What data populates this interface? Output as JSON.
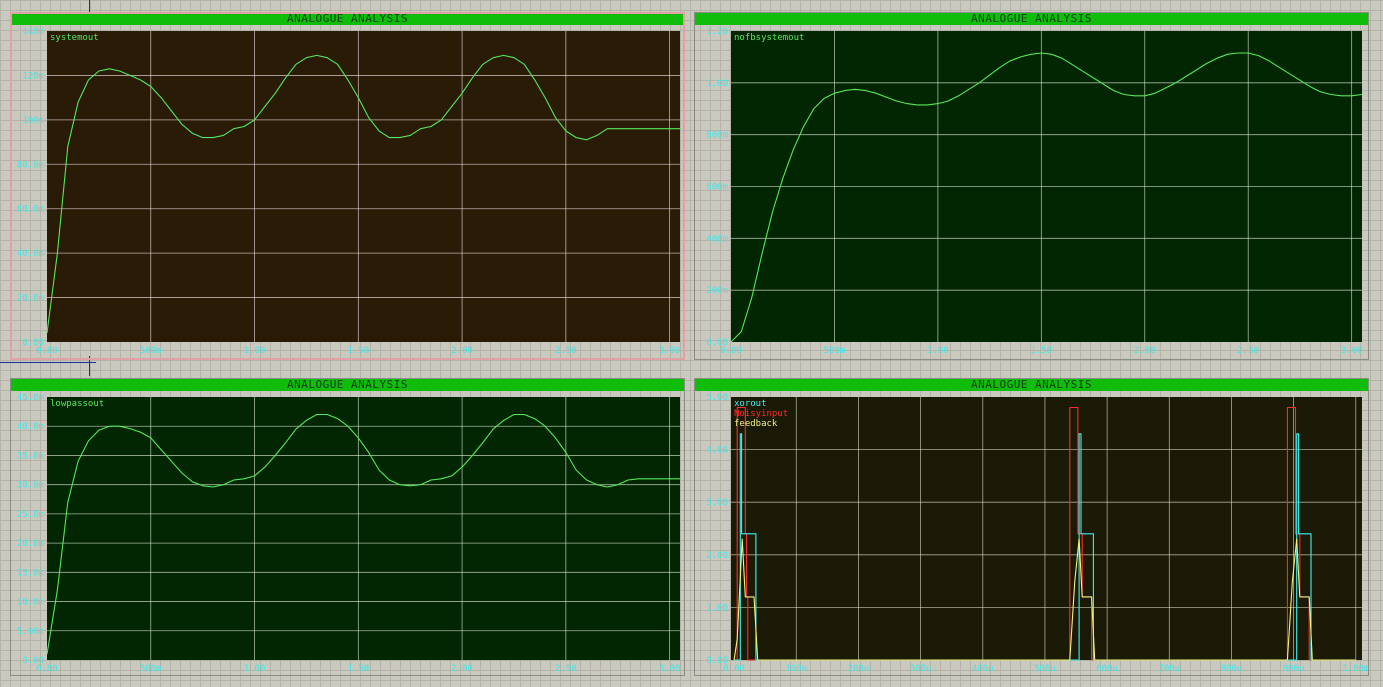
{
  "panels": [
    {
      "id": "p1",
      "title": "ANALOGUE ANALYSIS",
      "bg": "#2a1b07",
      "grid_color": "#f0dede",
      "selected": true,
      "traces": [
        {
          "name": "systemout",
          "color": "#56e856"
        }
      ],
      "x_ticks": [
        "0.00",
        "500m",
        "1.00",
        "1.50",
        "2.00",
        "2.50",
        "3.00"
      ],
      "y_ticks": [
        "0.00",
        "20.0m",
        "40.0m",
        "60.0m",
        "80.0m",
        "100m",
        "120m",
        "140m"
      ]
    },
    {
      "id": "p2",
      "title": "ANALOGUE ANALYSIS",
      "bg": "#022502",
      "grid_color": "#d8e8d0",
      "selected": false,
      "traces": [
        {
          "name": "nofbsystemout",
          "color": "#56e856"
        }
      ],
      "x_ticks": [
        "0.00",
        "500m",
        "1.00",
        "1.50",
        "2.00",
        "2.50",
        "3.00"
      ],
      "y_ticks": [
        "0.00",
        "200m",
        "400m",
        "600m",
        "800m",
        "1.00",
        "1.20"
      ]
    },
    {
      "id": "p3",
      "title": "ANALOGUE ANALYSIS",
      "bg": "#022502",
      "grid_color": "#d8e8d0",
      "selected": false,
      "traces": [
        {
          "name": "lowpassout",
          "color": "#56e856"
        }
      ],
      "x_ticks": [
        "0.00",
        "500m",
        "1.00",
        "1.50",
        "2.00",
        "2.50",
        "3.00"
      ],
      "y_ticks": [
        "0.00",
        "5.00m",
        "10.0m",
        "15.0m",
        "20.0m",
        "25.0m",
        "30.0m",
        "35.0m",
        "40.0m",
        "45.0m"
      ]
    },
    {
      "id": "p4",
      "title": "ANALOGUE ANALYSIS",
      "bg": "#1a1a06",
      "grid_color": "#dadcc0",
      "selected": false,
      "traces": [
        {
          "name": "xorout",
          "color": "#3ff0f0"
        },
        {
          "name": "Noisyinput",
          "color": "#ff2a2a"
        },
        {
          "name": "feedback",
          "color": "#f2f27c"
        }
      ],
      "x_ticks": [
        "0.00",
        "100u",
        "200u",
        "300u",
        "400u",
        "500u",
        "600u",
        "700u",
        "800u",
        "900u",
        "1.00m"
      ],
      "y_ticks": [
        "0.00",
        "1.00",
        "2.00",
        "3.00",
        "4.00",
        "5.00"
      ]
    }
  ],
  "chart_data": [
    {
      "type": "line",
      "title": "ANALOGUE ANALYSIS",
      "xlim": [
        0,
        3.05
      ],
      "ylim": [
        0,
        140
      ],
      "y_unit": "m",
      "series": [
        {
          "name": "systemout",
          "color": "#56e856",
          "x": [
            0,
            0.05,
            0.1,
            0.15,
            0.2,
            0.25,
            0.3,
            0.35,
            0.4,
            0.45,
            0.5,
            0.55,
            0.6,
            0.65,
            0.7,
            0.75,
            0.8,
            0.85,
            0.9,
            0.95,
            1.0,
            1.05,
            1.1,
            1.15,
            1.2,
            1.25,
            1.3,
            1.35,
            1.4,
            1.45,
            1.5,
            1.55,
            1.6,
            1.65,
            1.7,
            1.75,
            1.8,
            1.85,
            1.9,
            1.95,
            2.0,
            2.05,
            2.1,
            2.15,
            2.2,
            2.25,
            2.3,
            2.35,
            2.4,
            2.45,
            2.5,
            2.55,
            2.6,
            2.65,
            2.7,
            2.75,
            2.8,
            2.85,
            2.9,
            2.95,
            3.0,
            3.05
          ],
          "y": [
            4,
            40,
            88,
            108,
            118,
            122,
            123,
            122,
            120,
            118,
            115,
            110,
            104,
            98,
            94,
            92,
            92,
            93,
            96,
            97,
            100,
            106,
            112,
            119,
            125,
            128,
            129,
            128,
            125,
            118,
            110,
            101,
            95,
            92,
            92,
            93,
            96,
            97,
            100,
            106,
            112,
            119,
            125,
            128,
            129,
            128,
            125,
            118,
            110,
            101,
            95,
            92,
            91,
            93,
            96,
            96,
            96,
            96,
            96,
            96,
            96,
            96
          ]
        }
      ]
    },
    {
      "type": "line",
      "title": "ANALOGUE ANALYSIS",
      "xlim": [
        0,
        3.05
      ],
      "ylim": [
        0,
        1.2
      ],
      "series": [
        {
          "name": "nofbsystemout",
          "color": "#56e856",
          "x": [
            0,
            0.05,
            0.1,
            0.15,
            0.2,
            0.25,
            0.3,
            0.35,
            0.4,
            0.45,
            0.5,
            0.55,
            0.6,
            0.65,
            0.7,
            0.75,
            0.8,
            0.85,
            0.9,
            0.95,
            1.0,
            1.05,
            1.1,
            1.15,
            1.2,
            1.25,
            1.3,
            1.35,
            1.4,
            1.45,
            1.5,
            1.55,
            1.6,
            1.65,
            1.7,
            1.75,
            1.8,
            1.85,
            1.9,
            1.95,
            2.0,
            2.05,
            2.1,
            2.15,
            2.2,
            2.25,
            2.3,
            2.35,
            2.4,
            2.45,
            2.5,
            2.55,
            2.6,
            2.65,
            2.7,
            2.75,
            2.8,
            2.85,
            2.9,
            2.95,
            3.0,
            3.05
          ],
          "y": [
            0,
            0.04,
            0.17,
            0.34,
            0.5,
            0.63,
            0.74,
            0.83,
            0.9,
            0.94,
            0.96,
            0.97,
            0.975,
            0.97,
            0.96,
            0.945,
            0.93,
            0.92,
            0.915,
            0.915,
            0.92,
            0.93,
            0.95,
            0.975,
            1.0,
            1.03,
            1.06,
            1.085,
            1.1,
            1.11,
            1.115,
            1.11,
            1.095,
            1.07,
            1.045,
            1.02,
            0.995,
            0.97,
            0.955,
            0.95,
            0.95,
            0.96,
            0.98,
            1.0,
            1.025,
            1.05,
            1.075,
            1.095,
            1.11,
            1.115,
            1.115,
            1.105,
            1.085,
            1.06,
            1.035,
            1.01,
            0.985,
            0.965,
            0.955,
            0.95,
            0.95,
            0.955
          ]
        }
      ]
    },
    {
      "type": "line",
      "title": "ANALOGUE ANALYSIS",
      "xlim": [
        0,
        3.05
      ],
      "ylim": [
        0,
        45
      ],
      "y_unit": "m",
      "series": [
        {
          "name": "lowpassout",
          "color": "#56e856",
          "x": [
            0,
            0.05,
            0.1,
            0.15,
            0.2,
            0.25,
            0.3,
            0.35,
            0.4,
            0.45,
            0.5,
            0.55,
            0.6,
            0.65,
            0.7,
            0.75,
            0.8,
            0.85,
            0.9,
            0.95,
            1.0,
            1.05,
            1.1,
            1.15,
            1.2,
            1.25,
            1.3,
            1.35,
            1.4,
            1.45,
            1.5,
            1.55,
            1.6,
            1.65,
            1.7,
            1.75,
            1.8,
            1.85,
            1.9,
            1.95,
            2.0,
            2.05,
            2.1,
            2.15,
            2.2,
            2.25,
            2.3,
            2.35,
            2.4,
            2.45,
            2.5,
            2.55,
            2.6,
            2.65,
            2.7,
            2.75,
            2.8,
            2.85,
            2.9,
            2.95,
            3.0,
            3.05
          ],
          "y": [
            1,
            12,
            27,
            34,
            37.5,
            39.3,
            40,
            40,
            39.6,
            39,
            38,
            36,
            34,
            32,
            30.5,
            29.8,
            29.6,
            30,
            30.8,
            31,
            31.5,
            33,
            35,
            37.2,
            39.5,
            41,
            42,
            42,
            41.3,
            40,
            38,
            35.5,
            32.5,
            30.8,
            30,
            29.8,
            30,
            30.8,
            31,
            31.5,
            33,
            35,
            37.2,
            39.5,
            41,
            42,
            42,
            41.3,
            40,
            38,
            35.5,
            32.5,
            30.8,
            30,
            29.6,
            30,
            30.8,
            31,
            31,
            31,
            31,
            31
          ]
        }
      ]
    },
    {
      "type": "line",
      "title": "ANALOGUE ANALYSIS",
      "xlim": [
        -5e-06,
        0.00101
      ],
      "ylim": [
        0,
        5
      ],
      "series": [
        {
          "name": "Noisyinput",
          "color": "#ff2a2a",
          "x": [
            0,
            5e-06,
            5e-06,
            1.8e-05,
            1.8e-05,
            2e-05,
            2e-05,
            2.2e-05,
            2.2e-05,
            3.5e-05,
            0.00054,
            0.00054,
            0.000553,
            0.000553,
            0.00056,
            0.00056,
            0.000575,
            0.000575,
            0.00058,
            0.00089,
            0.00089,
            0.000903,
            0.000903,
            0.00091,
            0.00091,
            0.000925,
            0.000925,
            0.00093,
            0.001
          ],
          "y": [
            0,
            0,
            4.8,
            4.8,
            2.4,
            2.4,
            1.2,
            1.2,
            0,
            0,
            0,
            4.8,
            4.8,
            2.4,
            2.4,
            1.2,
            1.2,
            0,
            0,
            0,
            4.8,
            4.8,
            2.4,
            2.4,
            1.2,
            1.2,
            0,
            0,
            0
          ]
        },
        {
          "name": "xorout",
          "color": "#3ff0f0",
          "x": [
            0,
            1e-05,
            1e-05,
            1.2e-05,
            1.2e-05,
            1.5e-05,
            1.5e-05,
            3.5e-05,
            3.5e-05,
            4.5e-05,
            0.000545,
            0.000555,
            0.000555,
            0.000558,
            0.000558,
            0.000562,
            0.000562,
            0.000578,
            0.000578,
            0.00059,
            0.000895,
            0.000905,
            0.000905,
            0.000908,
            0.000908,
            0.000912,
            0.000912,
            0.000928,
            0.000928,
            0.00094,
            0.001
          ],
          "y": [
            0,
            0,
            4.3,
            4.3,
            2.4,
            2.4,
            2.4,
            2.4,
            0,
            0,
            0,
            0,
            4.3,
            4.3,
            2.4,
            2.4,
            2.4,
            2.4,
            0,
            0,
            0,
            0,
            4.3,
            4.3,
            2.4,
            2.4,
            2.4,
            2.4,
            0,
            0,
            0
          ]
        },
        {
          "name": "feedback",
          "color": "#f2f27c",
          "x": [
            0,
            5e-06,
            1.3e-05,
            1.8e-05,
            2e-05,
            2e-05,
            3.2e-05,
            3.8e-05,
            0.00054,
            0.000548,
            0.000555,
            0.00056,
            0.00056,
            0.000575,
            0.00058,
            0.00089,
            0.000898,
            0.000905,
            0.00091,
            0.00091,
            0.000925,
            0.00093,
            0.001
          ],
          "y": [
            0,
            0.4,
            2.3,
            1.2,
            1.2,
            1.2,
            1.2,
            0,
            0,
            1.5,
            2.3,
            1.2,
            1.2,
            1.2,
            0,
            0,
            1.5,
            2.3,
            1.2,
            1.2,
            1.2,
            0,
            0
          ]
        }
      ]
    }
  ]
}
